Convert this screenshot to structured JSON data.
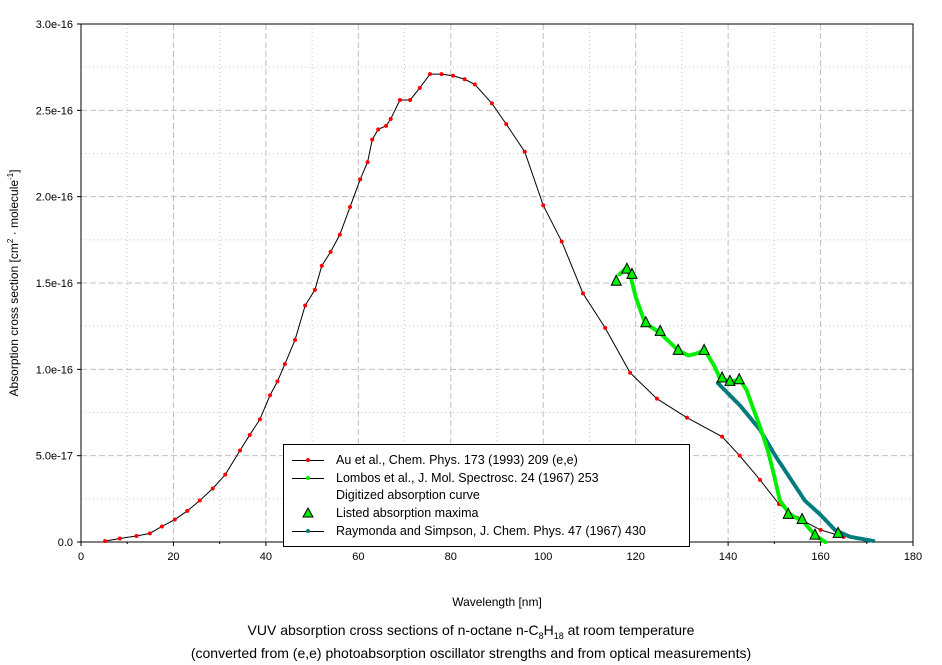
{
  "chart_data": {
    "type": "line",
    "title_line1_pre": "VUV absorption cross sections of n-octane n-C",
    "title_sub1": "8",
    "title_mid": "H",
    "title_sub2": "18",
    "title_line1_post": " at room temperature",
    "title_line2": "(converted from (e,e) photoabsorption oscillator strengths and from optical measurements)",
    "xlabel": "Wavelength [nm]",
    "ylabel_pre": "Absorption cross section [cm",
    "ylabel_sup1": "2",
    "ylabel_mid": " · molecule",
    "ylabel_sup2": "-1",
    "ylabel_post": "]",
    "xlim": [
      0,
      180
    ],
    "ylim": [
      0,
      3e-16
    ],
    "x_ticks": [
      "0",
      "20",
      "40",
      "60",
      "80",
      "100",
      "120",
      "140",
      "160",
      "180"
    ],
    "y_ticks": [
      "0.0",
      "5.0e-17",
      "1.0e-16",
      "1.5e-16",
      "2.0e-16",
      "2.5e-16",
      "3.0e-16"
    ],
    "grid": true,
    "legend_position": "bottom-center",
    "colors": {
      "au": "#ff0000",
      "lombos": "#00ee00",
      "raymonda": "#007b7b",
      "line": "#000000"
    },
    "series": [
      {
        "name": "Au et al., Chem. Phys. 173 (1993) 209 (e,e)",
        "unit_y": "1e-16",
        "x": [
          5.2,
          8.4,
          12,
          14.9,
          17.5,
          20.3,
          23,
          25.7,
          28.5,
          31.2,
          34.4,
          36.5,
          38.7,
          40.9,
          42.5,
          44.1,
          46.3,
          48.5,
          50.6,
          52.1,
          54,
          56,
          58.2,
          60.4,
          62,
          63,
          64.3,
          66,
          67,
          69,
          71.2,
          73.3,
          75.5,
          78,
          80.5,
          83,
          85.2,
          88.9,
          92,
          96,
          100,
          104,
          108.6,
          113.4,
          118.8,
          124.6,
          131.1,
          138.7,
          142.5,
          146.9,
          151,
          155,
          160,
          165
        ],
        "y": [
          0.005,
          0.02,
          0.035,
          0.05,
          0.09,
          0.13,
          0.18,
          0.24,
          0.31,
          0.39,
          0.53,
          0.62,
          0.71,
          0.85,
          0.93,
          1.03,
          1.17,
          1.37,
          1.46,
          1.6,
          1.68,
          1.78,
          1.94,
          2.1,
          2.2,
          2.33,
          2.39,
          2.41,
          2.45,
          2.56,
          2.56,
          2.63,
          2.71,
          2.71,
          2.7,
          2.68,
          2.65,
          2.54,
          2.42,
          2.26,
          1.95,
          1.74,
          1.44,
          1.24,
          0.98,
          0.83,
          0.72,
          0.61,
          0.5,
          0.36,
          0.22,
          0.14,
          0.07,
          0.03
        ]
      },
      {
        "name": "Lombos et al., J. Mol. Spectrosc. 24 (1967) 253",
        "subtitle": "Digitized absorption curve",
        "unit_y": "1e-16",
        "x": [
          116.5,
          117.7,
          118.8,
          120,
          122,
          125.3,
          129.2,
          131.4,
          133,
          135,
          137,
          138.2,
          140.4,
          142.6,
          144,
          145.2,
          147,
          148.6,
          150,
          151.2,
          153.4,
          156.2,
          158.8,
          161
        ],
        "y": [
          1.55,
          1.58,
          1.55,
          1.42,
          1.27,
          1.21,
          1.11,
          1.08,
          1.09,
          1.11,
          1.02,
          0.95,
          0.93,
          0.94,
          0.88,
          0.79,
          0.66,
          0.53,
          0.38,
          0.24,
          0.16,
          0.12,
          0.04,
          0.0
        ]
      },
      {
        "name": "Listed absorption maxima",
        "type": "scatter",
        "unit_y": "1e-16",
        "x": [
          115.8,
          118.1,
          119.2,
          122.2,
          125.3,
          129.2,
          134.8,
          138.7,
          140.4,
          142.4,
          153,
          156,
          158.8,
          163.8
        ],
        "y": [
          1.51,
          1.58,
          1.55,
          1.27,
          1.22,
          1.11,
          1.11,
          0.95,
          0.93,
          0.94,
          0.16,
          0.13,
          0.04,
          0.05
        ]
      },
      {
        "name": "Raymonda and Simpson, J. Chem. Phys. 47 (1967) 430",
        "unit_y": "1e-16",
        "x": [
          137.8,
          140,
          142.6,
          146.9,
          150.2,
          153.4,
          156.6,
          159.9,
          163.1,
          166.4,
          171.4
        ],
        "y": [
          0.92,
          0.86,
          0.79,
          0.65,
          0.5,
          0.37,
          0.24,
          0.16,
          0.07,
          0.03,
          0.006
        ]
      }
    ]
  }
}
